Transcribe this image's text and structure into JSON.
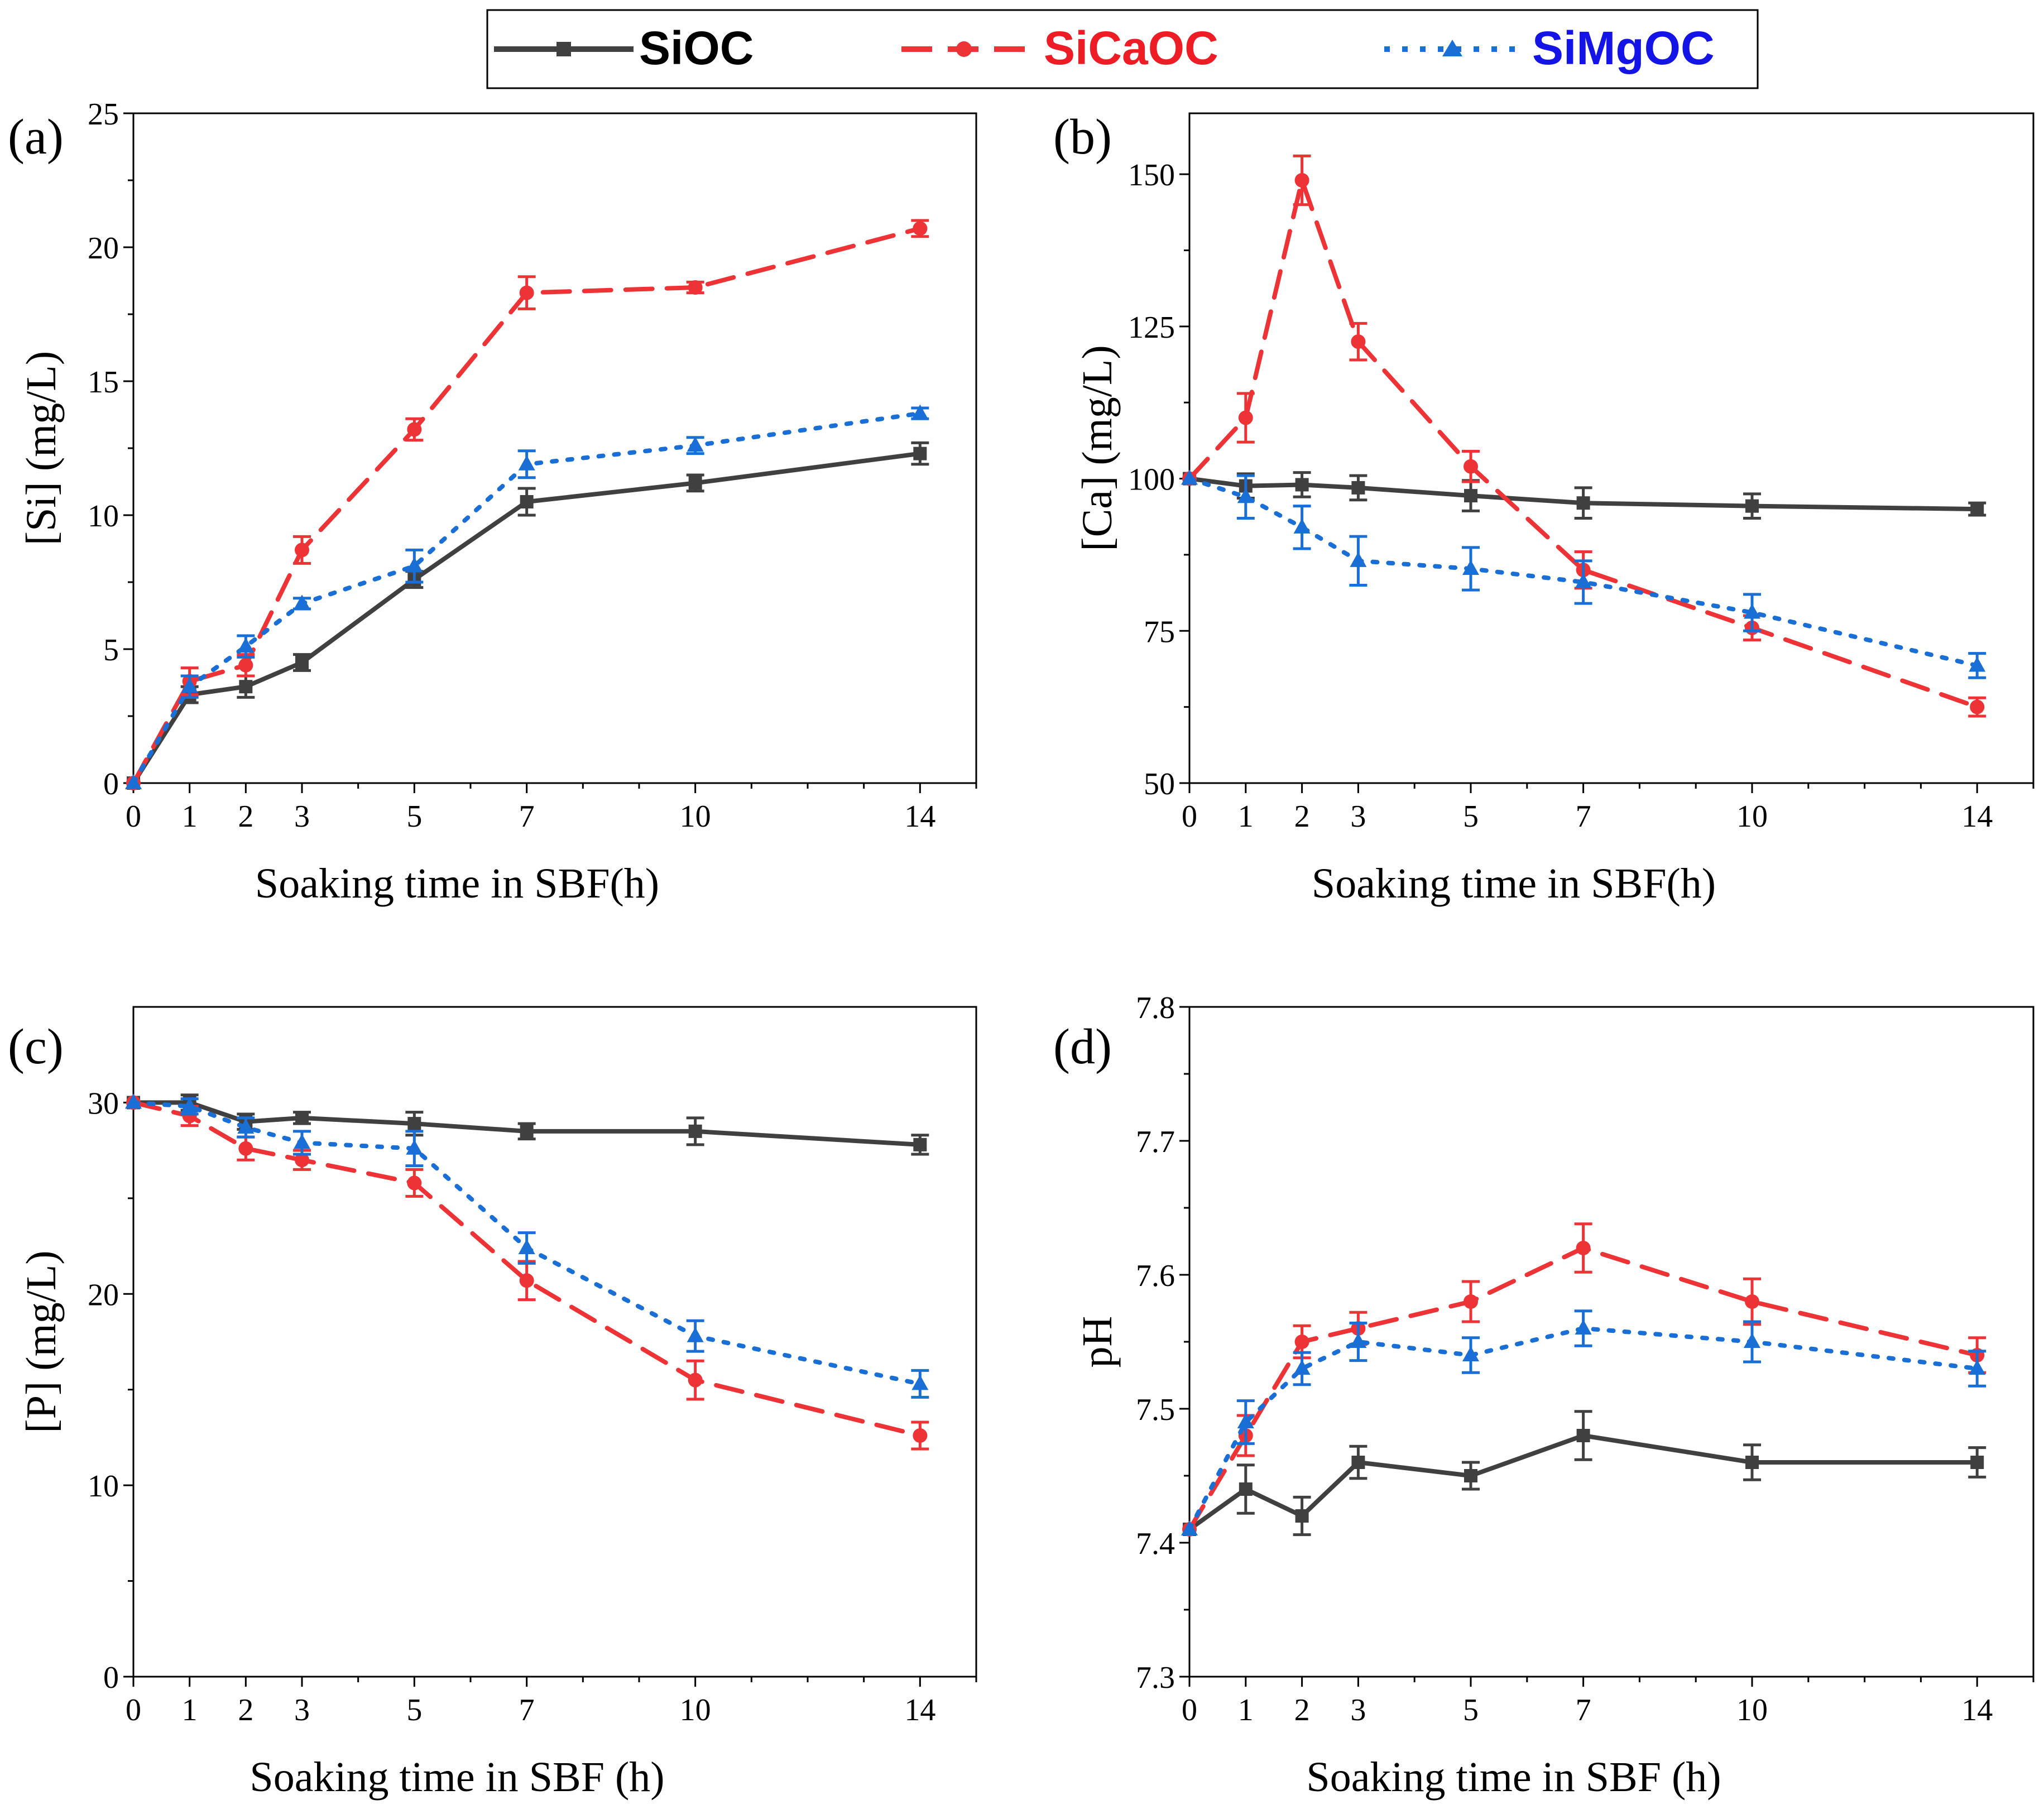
{
  "legend": {
    "entries": [
      {
        "name": "SiOC",
        "color": "#404040",
        "style": "solid",
        "marker": "square"
      },
      {
        "name": "SiCaOC",
        "color": "#ee3337",
        "style": "dashed",
        "marker": "circle"
      },
      {
        "name": "SiMgOC",
        "color": "#1a6fd6",
        "style": "dotted",
        "marker": "triangle"
      }
    ],
    "text_colors": [
      "#000000",
      "#ee1c24",
      "#1414e6"
    ]
  },
  "chart_data": [
    {
      "panel": "(a)",
      "type": "line",
      "title": "",
      "xlabel": "Soaking time in SBF(h)",
      "ylabel": "[Si] (mg/L)",
      "x": [
        0,
        1,
        2,
        3,
        5,
        7,
        10,
        14
      ],
      "x_ticks": [
        0,
        1,
        2,
        3,
        5,
        7,
        10,
        14
      ],
      "xlim": [
        0,
        15
      ],
      "ylim": [
        0,
        25
      ],
      "y_ticks": [
        0,
        5,
        10,
        15,
        20,
        25
      ],
      "y_tick_labels": [
        "0",
        "5",
        "10",
        "15",
        "20",
        "25"
      ],
      "series": [
        {
          "name": "SiOC",
          "values": [
            0,
            3.3,
            3.6,
            4.5,
            7.6,
            10.5,
            11.2,
            12.3
          ],
          "errors": [
            0,
            0.3,
            0.4,
            0.3,
            0.3,
            0.5,
            0.3,
            0.4
          ]
        },
        {
          "name": "SiCaOC",
          "values": [
            0,
            3.8,
            4.4,
            8.7,
            13.2,
            18.3,
            18.5,
            20.7
          ],
          "errors": [
            0,
            0.5,
            0.4,
            0.5,
            0.4,
            0.6,
            0.2,
            0.3
          ]
        },
        {
          "name": "SiMgOC",
          "values": [
            0,
            3.6,
            5.1,
            6.7,
            8.1,
            11.9,
            12.6,
            13.8
          ],
          "errors": [
            0,
            0.4,
            0.4,
            0.2,
            0.6,
            0.5,
            0.3,
            0.2
          ]
        }
      ]
    },
    {
      "panel": "(b)",
      "type": "line",
      "title": "",
      "xlabel": "Soaking time in SBF(h)",
      "ylabel": "[Ca] (mg/L)",
      "x": [
        0,
        1,
        2,
        3,
        5,
        7,
        10,
        14
      ],
      "x_ticks": [
        0,
        1,
        2,
        3,
        5,
        7,
        10,
        14
      ],
      "xlim": [
        0,
        15
      ],
      "ylim": [
        50,
        160
      ],
      "y_ticks": [
        50,
        75,
        100,
        125,
        150
      ],
      "y_tick_labels": [
        "50",
        "75",
        "100",
        "125",
        "150"
      ],
      "series": [
        {
          "name": "SiOC",
          "values": [
            100,
            98.8,
            99,
            98.5,
            97.2,
            96,
            95.5,
            95
          ],
          "errors": [
            0,
            2,
            2,
            2,
            2.5,
            2.5,
            2,
            1
          ]
        },
        {
          "name": "SiCaOC",
          "values": [
            100,
            110,
            149,
            122.5,
            102,
            85,
            75.5,
            62.5
          ],
          "errors": [
            0,
            4,
            4,
            3,
            2.5,
            3,
            2,
            1.5
          ]
        },
        {
          "name": "SiMgOC",
          "values": [
            100,
            97,
            92,
            86.5,
            85.2,
            83,
            78,
            69.3
          ],
          "errors": [
            0,
            3.5,
            3.5,
            4,
            3.5,
            3.5,
            3,
            2
          ]
        }
      ]
    },
    {
      "panel": "(c)",
      "type": "line",
      "title": "",
      "xlabel": "Soaking time in SBF (h)",
      "ylabel": "[P]  (mg/L)",
      "x": [
        0,
        1,
        2,
        3,
        5,
        7,
        10,
        14
      ],
      "x_ticks": [
        0,
        1,
        2,
        3,
        5,
        7,
        10,
        14
      ],
      "xlim": [
        0,
        15
      ],
      "ylim": [
        0,
        35
      ],
      "y_ticks": [
        0,
        10,
        20,
        30
      ],
      "y_tick_labels": [
        "0",
        "10",
        "20",
        "30"
      ],
      "series": [
        {
          "name": "SiOC",
          "values": [
            30,
            30,
            29,
            29.2,
            28.9,
            28.5,
            28.5,
            27.8
          ],
          "errors": [
            0,
            0.4,
            0.4,
            0.3,
            0.6,
            0.4,
            0.7,
            0.5
          ]
        },
        {
          "name": "SiCaOC",
          "values": [
            30,
            29.3,
            27.6,
            27,
            25.8,
            20.7,
            15.5,
            12.6
          ],
          "errors": [
            0,
            0.5,
            0.6,
            0.5,
            0.7,
            1,
            1,
            0.7
          ]
        },
        {
          "name": "SiMgOC",
          "values": [
            30,
            29.8,
            28.7,
            27.9,
            27.6,
            22.4,
            17.8,
            15.3
          ],
          "errors": [
            0,
            0.4,
            0.5,
            0.6,
            0.9,
            0.8,
            0.8,
            0.7
          ]
        }
      ]
    },
    {
      "panel": "(d)",
      "type": "line",
      "title": "",
      "xlabel": "Soaking time in SBF (h)",
      "ylabel": "pH",
      "x": [
        0,
        1,
        2,
        3,
        5,
        7,
        10,
        14
      ],
      "x_ticks": [
        0,
        1,
        2,
        3,
        5,
        7,
        10,
        14
      ],
      "xlim": [
        0,
        15
      ],
      "ylim": [
        7.3,
        7.8
      ],
      "y_ticks": [
        7.3,
        7.4,
        7.5,
        7.6,
        7.7,
        7.8
      ],
      "y_tick_labels": [
        "7.3",
        "7.4",
        "7.5",
        "7.6",
        "7.7",
        "7.8"
      ],
      "series": [
        {
          "name": "SiOC",
          "values": [
            7.41,
            7.44,
            7.42,
            7.46,
            7.45,
            7.48,
            7.46,
            7.46
          ],
          "errors": [
            0,
            0.018,
            0.014,
            0.012,
            0.01,
            0.018,
            0.013,
            0.011
          ]
        },
        {
          "name": "SiCaOC",
          "values": [
            7.41,
            7.48,
            7.55,
            7.56,
            7.58,
            7.62,
            7.58,
            7.54
          ],
          "errors": [
            0,
            0.015,
            0.012,
            0.012,
            0.015,
            0.018,
            0.017,
            0.013
          ]
        },
        {
          "name": "SiMgOC",
          "values": [
            7.41,
            7.49,
            7.53,
            7.55,
            7.54,
            7.56,
            7.55,
            7.53
          ],
          "errors": [
            0,
            0.016,
            0.012,
            0.014,
            0.013,
            0.013,
            0.015,
            0.013
          ]
        }
      ]
    }
  ]
}
